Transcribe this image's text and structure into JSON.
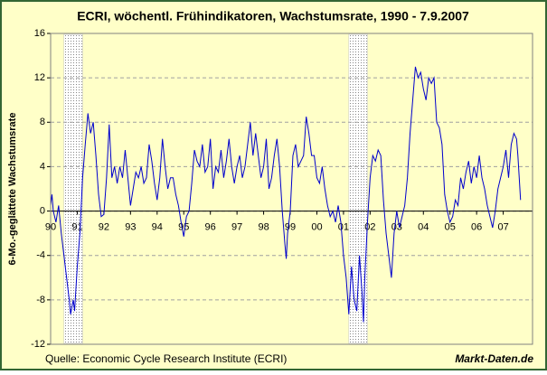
{
  "chart_data": {
    "type": "line",
    "title": "ECRI, wöchentl. Frühindikatoren, Wachstumsrate, 1990 - 7.9.2007",
    "y_label": "6-Mo.-geglättete Wachstumsrate",
    "source": "Quelle: Economic Cycle Research Institute (ECRI)",
    "brand": "Markt-Daten.de",
    "color": "#0000cc",
    "shade_color": "#c8c8c8",
    "grid": true,
    "xlim": [
      1990,
      2008.1
    ],
    "ylim": [
      -12,
      16
    ],
    "yticks": [
      16,
      12,
      8,
      4,
      0,
      -4,
      -8,
      -12
    ],
    "xticks": [
      {
        "value": 1990,
        "label": "90"
      },
      {
        "value": 1991,
        "label": "91"
      },
      {
        "value": 1992,
        "label": "92"
      },
      {
        "value": 1993,
        "label": "93"
      },
      {
        "value": 1994,
        "label": "94"
      },
      {
        "value": 1995,
        "label": "95"
      },
      {
        "value": 1996,
        "label": "96"
      },
      {
        "value": 1997,
        "label": "97"
      },
      {
        "value": 1998,
        "label": "98"
      },
      {
        "value": 1999,
        "label": "99"
      },
      {
        "value": 2000,
        "label": "00"
      },
      {
        "value": 2001,
        "label": "01"
      },
      {
        "value": 2002,
        "label": "02"
      },
      {
        "value": 2003,
        "label": "03"
      },
      {
        "value": 2004,
        "label": "04"
      },
      {
        "value": 2005,
        "label": "05"
      },
      {
        "value": 2006,
        "label": "06"
      },
      {
        "value": 2007,
        "label": "07"
      }
    ],
    "recessions": [
      [
        1990.5,
        1991.2
      ],
      [
        2001.2,
        2001.9
      ]
    ],
    "x": [
      1990.0,
      1990.05,
      1990.1,
      1990.2,
      1990.3,
      1990.4,
      1990.5,
      1990.6,
      1990.7,
      1990.75,
      1990.85,
      1990.9,
      1991.0,
      1991.1,
      1991.2,
      1991.3,
      1991.4,
      1991.5,
      1991.6,
      1991.7,
      1991.8,
      1991.9,
      1992.0,
      1992.1,
      1992.2,
      1992.3,
      1992.4,
      1992.5,
      1992.6,
      1992.7,
      1992.8,
      1992.9,
      1993.0,
      1993.1,
      1993.2,
      1993.3,
      1993.4,
      1993.5,
      1993.6,
      1993.7,
      1993.8,
      1993.9,
      1994.0,
      1994.1,
      1994.2,
      1994.3,
      1994.4,
      1994.5,
      1994.6,
      1994.7,
      1994.8,
      1994.9,
      1995.0,
      1995.1,
      1995.2,
      1995.3,
      1995.4,
      1995.5,
      1995.6,
      1995.7,
      1995.8,
      1995.9,
      1996.0,
      1996.1,
      1996.2,
      1996.3,
      1996.4,
      1996.5,
      1996.6,
      1996.7,
      1996.8,
      1996.9,
      1997.0,
      1997.1,
      1997.2,
      1997.3,
      1997.4,
      1997.5,
      1997.6,
      1997.7,
      1997.8,
      1997.9,
      1998.0,
      1998.1,
      1998.2,
      1998.3,
      1998.4,
      1998.5,
      1998.6,
      1998.65,
      1998.7,
      1998.8,
      1998.85,
      1998.9,
      1999.0,
      1999.1,
      1999.2,
      1999.3,
      1999.4,
      1999.5,
      1999.6,
      1999.7,
      1999.8,
      1999.9,
      2000.0,
      2000.1,
      2000.2,
      2000.3,
      2000.4,
      2000.5,
      2000.6,
      2000.7,
      2000.8,
      2000.9,
      2001.0,
      2001.1,
      2001.2,
      2001.3,
      2001.4,
      2001.5,
      2001.6,
      2001.7,
      2001.75,
      2001.8,
      2001.9,
      2002.0,
      2002.1,
      2002.2,
      2002.3,
      2002.4,
      2002.5,
      2002.6,
      2002.7,
      2002.8,
      2002.9,
      2003.0,
      2003.1,
      2003.2,
      2003.3,
      2003.4,
      2003.5,
      2003.6,
      2003.7,
      2003.8,
      2003.9,
      2004.0,
      2004.1,
      2004.2,
      2004.3,
      2004.4,
      2004.5,
      2004.6,
      2004.7,
      2004.8,
      2004.9,
      2005.0,
      2005.1,
      2005.2,
      2005.3,
      2005.4,
      2005.5,
      2005.6,
      2005.7,
      2005.8,
      2005.9,
      2006.0,
      2006.1,
      2006.2,
      2006.3,
      2006.4,
      2006.5,
      2006.6,
      2006.7,
      2006.8,
      2006.9,
      2007.0,
      2007.1,
      2007.2,
      2007.3,
      2007.4,
      2007.5,
      2007.55,
      2007.6,
      2007.65
    ],
    "values": [
      0.5,
      1.5,
      0,
      -1,
      0.5,
      -2,
      -4,
      -6,
      -8,
      -9.3,
      -8,
      -9,
      -5,
      -2,
      3,
      6,
      8.8,
      7,
      8,
      5,
      1.5,
      -0.5,
      -0.3,
      3,
      7.8,
      3,
      4,
      2.5,
      4,
      3,
      5.5,
      3,
      0.5,
      2,
      3.5,
      3,
      4,
      2.5,
      3,
      6,
      4.5,
      2.5,
      1,
      3,
      6.5,
      4,
      2,
      3,
      3,
      1.5,
      0.5,
      -1,
      -2.3,
      -0.5,
      0,
      2.5,
      5.5,
      4.5,
      4,
      6,
      3.5,
      4,
      6.5,
      2,
      4,
      3.5,
      5.5,
      3,
      4.5,
      6.5,
      4,
      2.5,
      4,
      5,
      3,
      4,
      6,
      8,
      5,
      7,
      5,
      3,
      4,
      6.5,
      2,
      3,
      5,
      6.5,
      4,
      2,
      0,
      -3,
      -4.3,
      -2,
      0,
      5,
      6,
      4,
      4.5,
      5,
      8.5,
      7,
      5,
      5,
      3,
      2.5,
      4,
      2,
      0.5,
      -0.5,
      0,
      -1,
      0.5,
      -1,
      -4,
      -6,
      -9.3,
      -5,
      -8,
      -9,
      -4,
      -7.5,
      -10,
      -6,
      -1,
      3,
      5,
      4.5,
      5.5,
      5,
      1,
      -2,
      -4,
      -6,
      -2,
      0,
      -1.5,
      -0.5,
      0.5,
      3,
      7,
      10,
      13,
      12,
      12.5,
      11,
      10,
      12,
      11.5,
      12,
      8,
      7.5,
      6,
      1.5,
      0,
      -1,
      -0.5,
      1,
      0.5,
      3,
      2,
      3.5,
      4.5,
      2.5,
      4,
      3,
      5,
      3,
      2,
      0.5,
      -0.5,
      -1.5,
      0,
      2,
      3,
      4,
      5.5,
      3,
      6,
      7,
      6.5,
      5,
      3,
      1
    ]
  }
}
